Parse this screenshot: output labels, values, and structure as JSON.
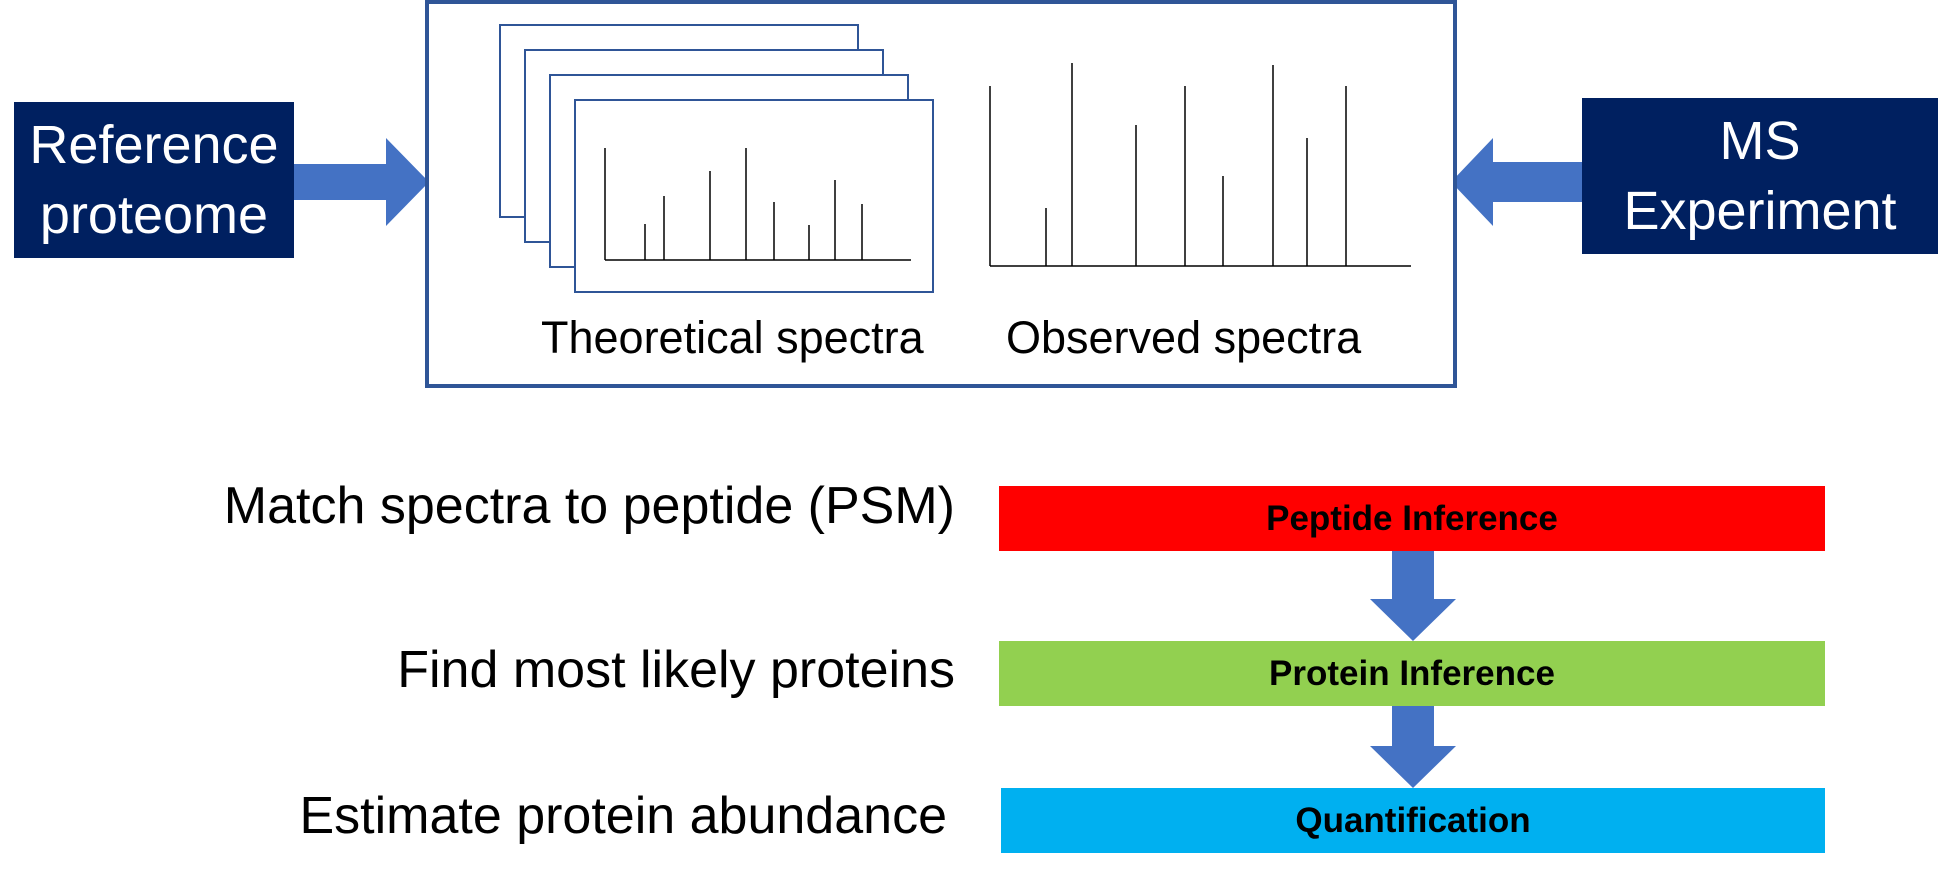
{
  "inputs": {
    "reference": {
      "lines": [
        "Reference",
        "proteome"
      ]
    },
    "experiment": {
      "lines": [
        "MS",
        "Experiment"
      ]
    }
  },
  "center": {
    "theoretical_label": "Theoretical spectra",
    "observed_label": "Observed spectra"
  },
  "steps": [
    {
      "label": "Match spectra to peptide (PSM)",
      "bar": "Peptide Inference",
      "color": "#FF0000"
    },
    {
      "label": "Find most likely proteins",
      "bar": "Protein Inference",
      "color": "#92D050"
    },
    {
      "label": "Estimate protein abundance",
      "bar": "Quantification",
      "color": "#00B0F0"
    }
  ],
  "colors": {
    "dark_box": "#002060",
    "frame": "#2F5597",
    "arrow": "#4472C4"
  },
  "icons": {
    "theoretical": "stacked-spectrum-cards",
    "observed": "stick-spectrum",
    "flow_arrow": "block-arrow"
  }
}
